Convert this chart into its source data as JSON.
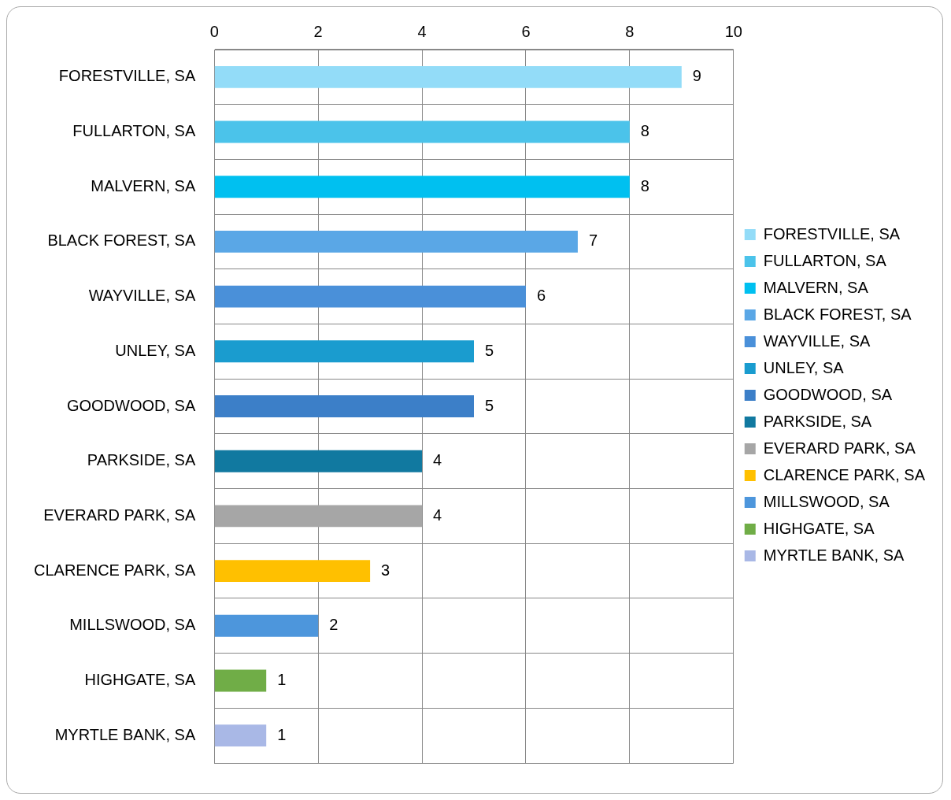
{
  "chart_data": {
    "type": "bar",
    "orientation": "horizontal",
    "categories": [
      "FORESTVILLE, SA",
      "FULLARTON, SA",
      "MALVERN, SA",
      "BLACK FOREST, SA",
      "WAYVILLE, SA",
      "UNLEY, SA",
      "GOODWOOD, SA",
      "PARKSIDE, SA",
      "EVERARD PARK, SA",
      "CLARENCE PARK, SA",
      "MILLSWOOD, SA",
      "HIGHGATE, SA",
      "MYRTLE BANK, SA"
    ],
    "series": [
      {
        "name": "FORESTVILLE, SA",
        "color": "#93dcf8",
        "values": [
          9,
          null,
          null,
          null,
          null,
          null,
          null,
          null,
          null,
          null,
          null,
          null,
          null
        ]
      },
      {
        "name": "FULLARTON, SA",
        "color": "#4bc3ea",
        "values": [
          null,
          8,
          null,
          null,
          null,
          null,
          null,
          null,
          null,
          null,
          null,
          null,
          null
        ]
      },
      {
        "name": "MALVERN, SA",
        "color": "#00c0f0",
        "values": [
          null,
          null,
          8,
          null,
          null,
          null,
          null,
          null,
          null,
          null,
          null,
          null,
          null
        ]
      },
      {
        "name": "BLACK FOREST, SA",
        "color": "#5aa7e6",
        "values": [
          null,
          null,
          null,
          7,
          null,
          null,
          null,
          null,
          null,
          null,
          null,
          null,
          null
        ]
      },
      {
        "name": "WAYVILLE, SA",
        "color": "#4a90d9",
        "values": [
          null,
          null,
          null,
          null,
          6,
          null,
          null,
          null,
          null,
          null,
          null,
          null,
          null
        ]
      },
      {
        "name": "UNLEY, SA",
        "color": "#1a9ccf",
        "values": [
          null,
          null,
          null,
          null,
          null,
          5,
          null,
          null,
          null,
          null,
          null,
          null,
          null
        ]
      },
      {
        "name": "GOODWOOD, SA",
        "color": "#3c7fc8",
        "values": [
          null,
          null,
          null,
          null,
          null,
          null,
          5,
          null,
          null,
          null,
          null,
          null,
          null
        ]
      },
      {
        "name": "PARKSIDE, SA",
        "color": "#1179a0",
        "values": [
          null,
          null,
          null,
          null,
          null,
          null,
          null,
          4,
          null,
          null,
          null,
          null,
          null
        ]
      },
      {
        "name": "EVERARD PARK, SA",
        "color": "#a6a6a6",
        "values": [
          null,
          null,
          null,
          null,
          null,
          null,
          null,
          null,
          4,
          null,
          null,
          null,
          null
        ]
      },
      {
        "name": "CLARENCE PARK, SA",
        "color": "#ffc000",
        "values": [
          null,
          null,
          null,
          null,
          null,
          null,
          null,
          null,
          null,
          3,
          null,
          null,
          null
        ]
      },
      {
        "name": "MILLSWOOD, SA",
        "color": "#4d96dc",
        "values": [
          null,
          null,
          null,
          null,
          null,
          null,
          null,
          null,
          null,
          null,
          2,
          null,
          null
        ]
      },
      {
        "name": "HIGHGATE, SA",
        "color": "#70ad47",
        "values": [
          null,
          null,
          null,
          null,
          null,
          null,
          null,
          null,
          null,
          null,
          null,
          1,
          null
        ]
      },
      {
        "name": "MYRTLE BANK, SA",
        "color": "#a9b8e6",
        "values": [
          null,
          null,
          null,
          null,
          null,
          null,
          null,
          null,
          null,
          null,
          null,
          null,
          1
        ]
      }
    ],
    "xlim": [
      0,
      10
    ],
    "xticks": [
      0,
      2,
      4,
      6,
      8,
      10
    ],
    "grid": true,
    "legend": "right",
    "data_labels": true
  }
}
